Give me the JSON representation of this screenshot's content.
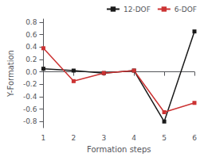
{
  "chart_data": {
    "type": "line",
    "xlabel": "Formation steps",
    "ylabel": "Y-Formation",
    "x": [
      1,
      2,
      3,
      4,
      5,
      6
    ],
    "series": [
      {
        "name": "12-DOF",
        "color": "#1a1a1a",
        "marker": "square",
        "values": [
          0.05,
          0.02,
          -0.02,
          0.02,
          -0.8,
          0.65
        ]
      },
      {
        "name": "6-DOF",
        "color": "#cc3333",
        "marker": "square",
        "values": [
          0.38,
          -0.15,
          -0.02,
          0.02,
          -0.65,
          -0.5
        ]
      }
    ],
    "xlim": [
      1,
      6
    ],
    "xticks": [
      1,
      2,
      3,
      4,
      5,
      6
    ],
    "ylim": [
      -0.9,
      0.85
    ],
    "yticks": [
      0.8,
      0.6,
      0.4,
      0.2,
      {
        "value": 0,
        "label": "0.0"
      },
      -0.2,
      -0.4,
      -0.6,
      -0.8
    ],
    "grid": false,
    "legend": "upper right"
  }
}
